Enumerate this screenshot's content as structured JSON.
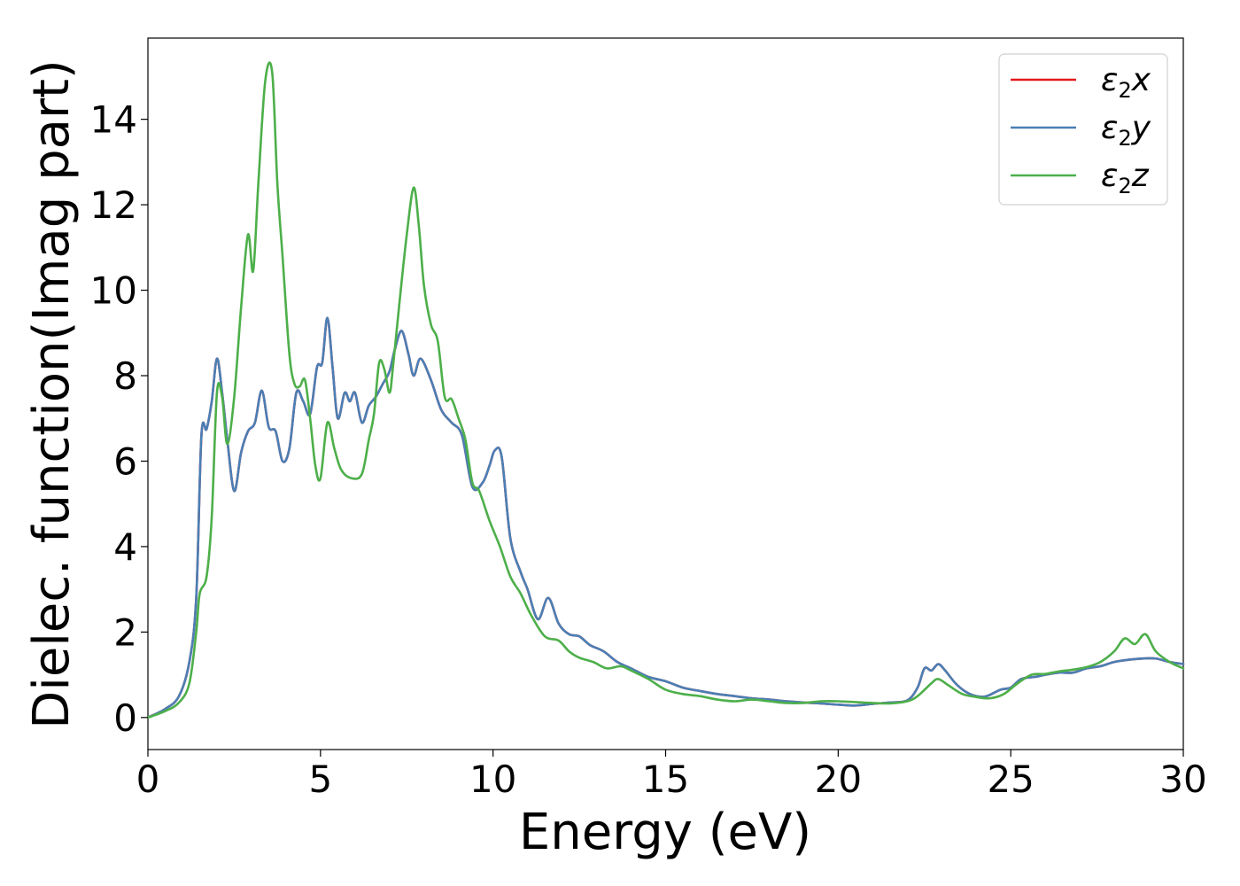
{
  "chart_data": {
    "type": "line",
    "title": "",
    "xlabel": "Energy (eV)",
    "ylabel": "Dielec. function(Imag part)",
    "xlim": [
      0,
      30
    ],
    "ylim": [
      -0.75,
      15.9
    ],
    "xticks": [
      0,
      5,
      10,
      15,
      20,
      25,
      30
    ],
    "yticks": [
      0,
      2,
      4,
      6,
      8,
      10,
      12,
      14
    ],
    "grid": false,
    "legend_position": "top-right",
    "series": [
      {
        "name": "ε₂x",
        "legend_base": "ε",
        "legend_sub": "2",
        "legend_suffix": "x",
        "color": "#e41a1c",
        "points": [
          [
            0,
            0
          ],
          [
            0.5,
            0.2
          ],
          [
            0.9,
            0.5
          ],
          [
            1.2,
            1.3
          ],
          [
            1.4,
            2.8
          ],
          [
            1.55,
            6.6
          ],
          [
            1.7,
            6.75
          ],
          [
            1.85,
            7.4
          ],
          [
            2.0,
            8.4
          ],
          [
            2.15,
            7.6
          ],
          [
            2.3,
            6.5
          ],
          [
            2.5,
            5.3
          ],
          [
            2.7,
            6.2
          ],
          [
            2.9,
            6.7
          ],
          [
            3.1,
            6.9
          ],
          [
            3.3,
            7.65
          ],
          [
            3.5,
            6.8
          ],
          [
            3.7,
            6.7
          ],
          [
            3.9,
            6.0
          ],
          [
            4.1,
            6.3
          ],
          [
            4.3,
            7.6
          ],
          [
            4.5,
            7.4
          ],
          [
            4.7,
            7.1
          ],
          [
            4.9,
            8.2
          ],
          [
            5.05,
            8.3
          ],
          [
            5.2,
            9.35
          ],
          [
            5.35,
            8.2
          ],
          [
            5.5,
            7.0
          ],
          [
            5.7,
            7.6
          ],
          [
            5.85,
            7.4
          ],
          [
            6.0,
            7.6
          ],
          [
            6.2,
            6.9
          ],
          [
            6.4,
            7.3
          ],
          [
            6.6,
            7.5
          ],
          [
            6.8,
            7.8
          ],
          [
            7.0,
            8.1
          ],
          [
            7.15,
            8.6
          ],
          [
            7.35,
            9.05
          ],
          [
            7.55,
            8.5
          ],
          [
            7.7,
            8.0
          ],
          [
            7.9,
            8.4
          ],
          [
            8.2,
            7.9
          ],
          [
            8.5,
            7.2
          ],
          [
            8.8,
            6.9
          ],
          [
            9.1,
            6.6
          ],
          [
            9.4,
            5.4
          ],
          [
            9.7,
            5.5
          ],
          [
            9.9,
            5.9
          ],
          [
            10.05,
            6.25
          ],
          [
            10.25,
            6.1
          ],
          [
            10.5,
            4.2
          ],
          [
            10.8,
            3.4
          ],
          [
            11.0,
            3.0
          ],
          [
            11.3,
            2.3
          ],
          [
            11.6,
            2.8
          ],
          [
            11.9,
            2.2
          ],
          [
            12.2,
            1.95
          ],
          [
            12.5,
            1.9
          ],
          [
            12.8,
            1.7
          ],
          [
            13.2,
            1.55
          ],
          [
            13.6,
            1.3
          ],
          [
            14.0,
            1.15
          ],
          [
            14.5,
            0.95
          ],
          [
            15.0,
            0.85
          ],
          [
            15.5,
            0.7
          ],
          [
            16.0,
            0.62
          ],
          [
            16.5,
            0.55
          ],
          [
            17.0,
            0.5
          ],
          [
            17.5,
            0.45
          ],
          [
            18.0,
            0.42
          ],
          [
            18.5,
            0.38
          ],
          [
            19.0,
            0.35
          ],
          [
            19.5,
            0.33
          ],
          [
            20.0,
            0.3
          ],
          [
            20.5,
            0.28
          ],
          [
            21.0,
            0.32
          ],
          [
            21.5,
            0.35
          ],
          [
            22.0,
            0.4
          ],
          [
            22.3,
            0.7
          ],
          [
            22.5,
            1.15
          ],
          [
            22.7,
            1.1
          ],
          [
            22.9,
            1.25
          ],
          [
            23.1,
            1.1
          ],
          [
            23.4,
            0.8
          ],
          [
            23.7,
            0.6
          ],
          [
            24.0,
            0.5
          ],
          [
            24.3,
            0.5
          ],
          [
            24.7,
            0.65
          ],
          [
            25.0,
            0.7
          ],
          [
            25.3,
            0.9
          ],
          [
            25.7,
            0.95
          ],
          [
            26.0,
            1.0
          ],
          [
            26.4,
            1.05
          ],
          [
            26.8,
            1.05
          ],
          [
            27.2,
            1.15
          ],
          [
            27.6,
            1.2
          ],
          [
            28.0,
            1.3
          ],
          [
            28.4,
            1.35
          ],
          [
            28.8,
            1.38
          ],
          [
            29.2,
            1.38
          ],
          [
            29.6,
            1.3
          ],
          [
            30.0,
            1.25
          ]
        ]
      },
      {
        "name": "ε₂y",
        "legend_base": "ε",
        "legend_sub": "2",
        "legend_suffix": "y",
        "color": "#4a7fb5",
        "points": [
          [
            0,
            0
          ],
          [
            0.5,
            0.2
          ],
          [
            0.9,
            0.5
          ],
          [
            1.2,
            1.3
          ],
          [
            1.4,
            2.8
          ],
          [
            1.55,
            6.6
          ],
          [
            1.7,
            6.75
          ],
          [
            1.85,
            7.4
          ],
          [
            2.0,
            8.4
          ],
          [
            2.15,
            7.6
          ],
          [
            2.3,
            6.5
          ],
          [
            2.5,
            5.3
          ],
          [
            2.7,
            6.2
          ],
          [
            2.9,
            6.7
          ],
          [
            3.1,
            6.9
          ],
          [
            3.3,
            7.65
          ],
          [
            3.5,
            6.8
          ],
          [
            3.7,
            6.7
          ],
          [
            3.9,
            6.0
          ],
          [
            4.1,
            6.3
          ],
          [
            4.3,
            7.6
          ],
          [
            4.5,
            7.4
          ],
          [
            4.7,
            7.1
          ],
          [
            4.9,
            8.2
          ],
          [
            5.05,
            8.3
          ],
          [
            5.2,
            9.35
          ],
          [
            5.35,
            8.2
          ],
          [
            5.5,
            7.0
          ],
          [
            5.7,
            7.6
          ],
          [
            5.85,
            7.4
          ],
          [
            6.0,
            7.6
          ],
          [
            6.2,
            6.9
          ],
          [
            6.4,
            7.3
          ],
          [
            6.6,
            7.5
          ],
          [
            6.8,
            7.8
          ],
          [
            7.0,
            8.1
          ],
          [
            7.15,
            8.6
          ],
          [
            7.35,
            9.05
          ],
          [
            7.55,
            8.5
          ],
          [
            7.7,
            8.0
          ],
          [
            7.9,
            8.4
          ],
          [
            8.2,
            7.9
          ],
          [
            8.5,
            7.2
          ],
          [
            8.8,
            6.9
          ],
          [
            9.1,
            6.6
          ],
          [
            9.4,
            5.4
          ],
          [
            9.7,
            5.5
          ],
          [
            9.9,
            5.9
          ],
          [
            10.05,
            6.25
          ],
          [
            10.25,
            6.1
          ],
          [
            10.5,
            4.2
          ],
          [
            10.8,
            3.4
          ],
          [
            11.0,
            3.0
          ],
          [
            11.3,
            2.3
          ],
          [
            11.6,
            2.8
          ],
          [
            11.9,
            2.2
          ],
          [
            12.2,
            1.95
          ],
          [
            12.5,
            1.9
          ],
          [
            12.8,
            1.7
          ],
          [
            13.2,
            1.55
          ],
          [
            13.6,
            1.3
          ],
          [
            14.0,
            1.15
          ],
          [
            14.5,
            0.95
          ],
          [
            15.0,
            0.85
          ],
          [
            15.5,
            0.7
          ],
          [
            16.0,
            0.62
          ],
          [
            16.5,
            0.55
          ],
          [
            17.0,
            0.5
          ],
          [
            17.5,
            0.45
          ],
          [
            18.0,
            0.42
          ],
          [
            18.5,
            0.38
          ],
          [
            19.0,
            0.35
          ],
          [
            19.5,
            0.33
          ],
          [
            20.0,
            0.3
          ],
          [
            20.5,
            0.28
          ],
          [
            21.0,
            0.32
          ],
          [
            21.5,
            0.35
          ],
          [
            22.0,
            0.4
          ],
          [
            22.3,
            0.7
          ],
          [
            22.5,
            1.15
          ],
          [
            22.7,
            1.1
          ],
          [
            22.9,
            1.25
          ],
          [
            23.1,
            1.1
          ],
          [
            23.4,
            0.8
          ],
          [
            23.7,
            0.6
          ],
          [
            24.0,
            0.5
          ],
          [
            24.3,
            0.5
          ],
          [
            24.7,
            0.65
          ],
          [
            25.0,
            0.7
          ],
          [
            25.3,
            0.9
          ],
          [
            25.7,
            0.95
          ],
          [
            26.0,
            1.0
          ],
          [
            26.4,
            1.05
          ],
          [
            26.8,
            1.05
          ],
          [
            27.2,
            1.15
          ],
          [
            27.6,
            1.2
          ],
          [
            28.0,
            1.3
          ],
          [
            28.4,
            1.35
          ],
          [
            28.8,
            1.38
          ],
          [
            29.2,
            1.38
          ],
          [
            29.6,
            1.3
          ],
          [
            30.0,
            1.25
          ]
        ]
      },
      {
        "name": "ε₂z",
        "legend_base": "ε",
        "legend_sub": "2",
        "legend_suffix": "z",
        "color": "#4daf4a",
        "points": [
          [
            0,
            0
          ],
          [
            0.5,
            0.15
          ],
          [
            0.9,
            0.35
          ],
          [
            1.2,
            0.8
          ],
          [
            1.4,
            2.0
          ],
          [
            1.5,
            2.9
          ],
          [
            1.7,
            3.3
          ],
          [
            1.85,
            4.7
          ],
          [
            2.0,
            7.6
          ],
          [
            2.15,
            7.5
          ],
          [
            2.3,
            6.4
          ],
          [
            2.5,
            7.5
          ],
          [
            2.7,
            9.6
          ],
          [
            2.9,
            11.3
          ],
          [
            3.05,
            10.45
          ],
          [
            3.2,
            12.5
          ],
          [
            3.4,
            14.9
          ],
          [
            3.6,
            15.1
          ],
          [
            3.75,
            12.5
          ],
          [
            3.9,
            10.8
          ],
          [
            4.1,
            8.5
          ],
          [
            4.25,
            7.8
          ],
          [
            4.4,
            7.75
          ],
          [
            4.55,
            7.9
          ],
          [
            4.7,
            7.0
          ],
          [
            4.85,
            5.9
          ],
          [
            5.0,
            5.6
          ],
          [
            5.2,
            6.9
          ],
          [
            5.4,
            6.3
          ],
          [
            5.6,
            5.8
          ],
          [
            5.9,
            5.6
          ],
          [
            6.2,
            5.7
          ],
          [
            6.4,
            6.5
          ],
          [
            6.55,
            7.1
          ],
          [
            6.7,
            8.3
          ],
          [
            6.85,
            8.15
          ],
          [
            7.0,
            7.6
          ],
          [
            7.1,
            8.2
          ],
          [
            7.3,
            9.8
          ],
          [
            7.5,
            11.3
          ],
          [
            7.7,
            12.4
          ],
          [
            7.85,
            11.5
          ],
          [
            8.0,
            10.1
          ],
          [
            8.2,
            9.2
          ],
          [
            8.4,
            8.8
          ],
          [
            8.6,
            7.5
          ],
          [
            8.8,
            7.45
          ],
          [
            9.0,
            7.0
          ],
          [
            9.2,
            6.5
          ],
          [
            9.4,
            5.5
          ],
          [
            9.6,
            5.3
          ],
          [
            9.9,
            4.6
          ],
          [
            10.2,
            4.0
          ],
          [
            10.5,
            3.3
          ],
          [
            10.8,
            2.9
          ],
          [
            11.1,
            2.4
          ],
          [
            11.5,
            1.9
          ],
          [
            11.9,
            1.8
          ],
          [
            12.2,
            1.55
          ],
          [
            12.5,
            1.4
          ],
          [
            12.9,
            1.3
          ],
          [
            13.3,
            1.15
          ],
          [
            13.7,
            1.2
          ],
          [
            14.0,
            1.1
          ],
          [
            14.5,
            0.9
          ],
          [
            15.0,
            0.65
          ],
          [
            15.5,
            0.55
          ],
          [
            16.0,
            0.5
          ],
          [
            16.5,
            0.42
          ],
          [
            17.0,
            0.38
          ],
          [
            17.5,
            0.42
          ],
          [
            18.0,
            0.38
          ],
          [
            18.5,
            0.34
          ],
          [
            19.0,
            0.34
          ],
          [
            19.5,
            0.38
          ],
          [
            20.0,
            0.38
          ],
          [
            20.5,
            0.36
          ],
          [
            21.0,
            0.34
          ],
          [
            21.5,
            0.33
          ],
          [
            22.0,
            0.38
          ],
          [
            22.3,
            0.5
          ],
          [
            22.7,
            0.8
          ],
          [
            22.9,
            0.9
          ],
          [
            23.2,
            0.75
          ],
          [
            23.6,
            0.55
          ],
          [
            24.0,
            0.48
          ],
          [
            24.4,
            0.45
          ],
          [
            24.8,
            0.55
          ],
          [
            25.2,
            0.8
          ],
          [
            25.6,
            1.0
          ],
          [
            26.0,
            1.02
          ],
          [
            26.4,
            1.08
          ],
          [
            26.8,
            1.12
          ],
          [
            27.2,
            1.18
          ],
          [
            27.6,
            1.3
          ],
          [
            28.0,
            1.55
          ],
          [
            28.3,
            1.85
          ],
          [
            28.6,
            1.72
          ],
          [
            28.9,
            1.95
          ],
          [
            29.2,
            1.55
          ],
          [
            29.6,
            1.3
          ],
          [
            30.0,
            1.15
          ]
        ]
      }
    ]
  }
}
